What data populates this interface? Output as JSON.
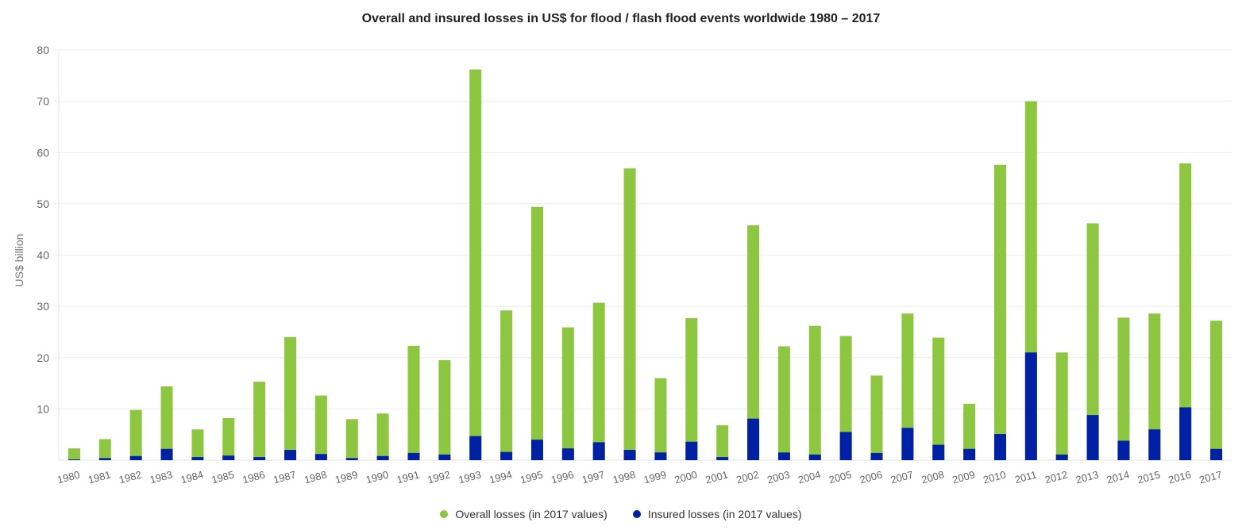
{
  "chart_data": {
    "type": "bar",
    "stacking": "overlap",
    "title": "Overall and insured losses in US$ for flood / flash flood events worldwide 1980 – 2017",
    "xlabel": "",
    "ylabel": "US$ billion",
    "ylim": [
      0,
      80
    ],
    "yticks": [
      10,
      20,
      30,
      40,
      50,
      60,
      70,
      80
    ],
    "grid": true,
    "legend_position": "bottom-center",
    "categories": [
      "1980",
      "1981",
      "1982",
      "1983",
      "1984",
      "1985",
      "1986",
      "1987",
      "1988",
      "1989",
      "1990",
      "1991",
      "1992",
      "1993",
      "1994",
      "1995",
      "1996",
      "1997",
      "1998",
      "1999",
      "2000",
      "2001",
      "2002",
      "2003",
      "2004",
      "2005",
      "2006",
      "2007",
      "2008",
      "2009",
      "2010",
      "2011",
      "2012",
      "2013",
      "2014",
      "2015",
      "2016",
      "2017"
    ],
    "series": [
      {
        "name": "Overall losses (in 2017 values)",
        "color": "#8DC63F",
        "values": [
          2.3,
          4.1,
          9.8,
          14.4,
          6.0,
          8.2,
          15.3,
          24.0,
          12.6,
          8.0,
          9.1,
          22.3,
          19.5,
          76.2,
          29.2,
          49.4,
          25.9,
          30.7,
          56.9,
          16.0,
          27.7,
          6.8,
          45.8,
          22.2,
          26.2,
          24.2,
          16.5,
          28.6,
          23.9,
          11.0,
          57.6,
          70.0,
          21.0,
          46.2,
          27.8,
          28.6,
          57.9,
          27.2
        ]
      },
      {
        "name": "Insured losses (in 2017 values)",
        "color": "#0021A5",
        "values": [
          0.15,
          0.4,
          0.8,
          2.2,
          0.6,
          0.9,
          0.6,
          2.0,
          1.2,
          0.4,
          0.8,
          1.4,
          1.1,
          4.7,
          1.6,
          4.0,
          2.3,
          3.5,
          2.0,
          1.5,
          3.6,
          0.6,
          8.1,
          1.5,
          1.1,
          5.5,
          1.4,
          6.3,
          3.0,
          2.2,
          5.1,
          21.0,
          1.1,
          8.8,
          3.8,
          6.0,
          10.3,
          2.2
        ]
      }
    ]
  }
}
